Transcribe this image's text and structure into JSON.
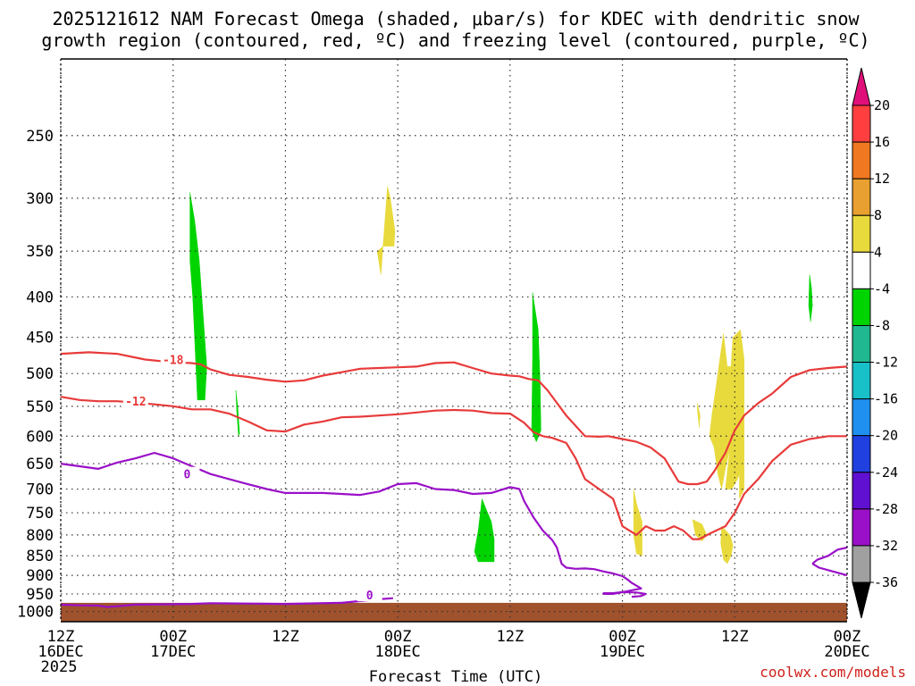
{
  "title": {
    "line1": "2025121612 NAM Forecast Omega (shaded, μbar/s) for KDEC with dendritic snow",
    "line2": "growth region (contoured, red, ºC) and freezing level (contoured, purple, ºC)"
  },
  "credit": "coolwx.com/models",
  "chart_data": {
    "type": "time-height cross section (shaded + contoured)",
    "xlabel": "Forecast Time (UTC)",
    "ylabel": "",
    "x_range_hours": [
      0,
      84
    ],
    "x_ticks": [
      {
        "hour": 0,
        "lines": [
          "12Z",
          "16DEC",
          "2025"
        ]
      },
      {
        "hour": 12,
        "lines": [
          "00Z",
          "17DEC"
        ]
      },
      {
        "hour": 24,
        "lines": [
          "12Z"
        ]
      },
      {
        "hour": 36,
        "lines": [
          "00Z",
          "18DEC"
        ]
      },
      {
        "hour": 48,
        "lines": [
          "12Z"
        ]
      },
      {
        "hour": 60,
        "lines": [
          "00Z",
          "19DEC"
        ]
      },
      {
        "hour": 72,
        "lines": [
          "12Z"
        ]
      },
      {
        "hour": 84,
        "lines": [
          "00Z",
          "20DEC"
        ]
      }
    ],
    "y_scale": "log-pressure, decreasing upward (hPa)",
    "y_range_hpa": [
      1030,
      200
    ],
    "y_ticks": [
      250,
      300,
      350,
      400,
      450,
      500,
      550,
      600,
      650,
      700,
      750,
      800,
      850,
      900,
      950,
      1000
    ],
    "grid": "dotted horizontal and vertical",
    "colorbar": {
      "units": "μbar/s",
      "labels": [
        "20",
        "16",
        "12",
        "8",
        "4",
        "-4",
        "-8",
        "-12",
        "-16",
        "-20",
        "-24",
        "-28",
        "-32",
        "-36"
      ],
      "bins": [
        {
          "color": "#ff3f3f"
        },
        {
          "color": "#f07820"
        },
        {
          "color": "#e8a030"
        },
        {
          "color": "#e8da3c"
        },
        {
          "color": "#ffffff"
        },
        {
          "color": "#00d400"
        },
        {
          "color": "#20b890"
        },
        {
          "color": "#18c0c8"
        },
        {
          "color": "#2090f0"
        },
        {
          "color": "#2040e0"
        },
        {
          "color": "#6010d0"
        },
        {
          "color": "#9a10c8"
        },
        {
          "color": "#a0a0a0"
        }
      ],
      "top_arrow_color": "#e0107a",
      "bottom_arrow_color": "#000000"
    },
    "terrain": {
      "color": "#a0522d",
      "surface_hpa": 975
    },
    "shaded_regions": [
      {
        "color": "#00d400",
        "hours": [
          13.8,
          14.3,
          14.8,
          15.2,
          15.6,
          15.4,
          14.6,
          14.1,
          13.8
        ],
        "hpa": [
          295,
          320,
          360,
          420,
          490,
          540,
          540,
          400,
          360
        ]
      },
      {
        "color": "#00d400",
        "hours": [
          18.7,
          18.9,
          19.1,
          19.0,
          18.8
        ],
        "hpa": [
          525,
          550,
          595,
          600,
          560
        ]
      },
      {
        "color": "#e8da3c",
        "hours": [
          34.9,
          35.2,
          35.7,
          35.6,
          34.5,
          33.8,
          34.2
        ],
        "hpa": [
          290,
          300,
          330,
          345,
          345,
          350,
          375
        ]
      },
      {
        "color": "#00d400",
        "hours": [
          50.4,
          51.0,
          51.2,
          51.3,
          50.8,
          50.3,
          50.4
        ],
        "hpa": [
          395,
          440,
          510,
          590,
          610,
          590,
          480
        ]
      },
      {
        "color": "#00d400",
        "hours": [
          45.0,
          45.4,
          46.0,
          46.3,
          46.3,
          44.6,
          44.2,
          44.6
        ],
        "hpa": [
          720,
          740,
          770,
          810,
          865,
          865,
          840,
          790
        ]
      },
      {
        "color": "#00d400",
        "hours": [
          80.0,
          80.2,
          80.3,
          80.1,
          79.9
        ],
        "hpa": [
          375,
          390,
          410,
          430,
          410
        ]
      },
      {
        "color": "#e8da3c",
        "hours": [
          70.8,
          71.2,
          71.6,
          71.8,
          72.6,
          73.0,
          73.0,
          72.5,
          72.5,
          72.3,
          71.7,
          71.3,
          71.0,
          71.5,
          71.0,
          70.6,
          70.2,
          69.8,
          69.3,
          69.6,
          70.0,
          70.4
        ],
        "hpa": [
          445,
          490,
          490,
          450,
          440,
          480,
          700,
          720,
          670,
          680,
          700,
          700,
          700,
          620,
          660,
          700,
          670,
          620,
          600,
          560,
          520,
          480
        ]
      },
      {
        "color": "#e8da3c",
        "hours": [
          68.0,
          68.3,
          68.2,
          68.0
        ],
        "hpa": [
          545,
          565,
          585,
          555
        ]
      },
      {
        "color": "#e8da3c",
        "hours": [
          61.2,
          61.5,
          62.1,
          62.1,
          61.5,
          61.2,
          61.2
        ],
        "hpa": [
          700,
          730,
          770,
          850,
          845,
          800,
          760
        ]
      },
      {
        "color": "#e8da3c",
        "hours": [
          67.5,
          68.5,
          69.0,
          68.5,
          67.8
        ],
        "hpa": [
          765,
          775,
          800,
          815,
          800
        ]
      },
      {
        "color": "#e8da3c",
        "hours": [
          70.6,
          71.5,
          71.8,
          71.6,
          71.2,
          70.8,
          70.5
        ],
        "hpa": [
          780,
          800,
          825,
          850,
          870,
          860,
          820
        ]
      }
    ],
    "contours": [
      {
        "value": -18,
        "color": "#e83a3a",
        "label": "-18",
        "label_at": [
          12,
          480
        ],
        "hours": [
          0,
          3,
          6,
          9,
          12,
          14,
          15,
          16,
          18,
          20,
          22,
          24,
          26,
          28,
          30,
          32,
          34,
          36,
          38,
          40,
          42,
          44,
          46,
          48,
          49,
          50,
          51,
          52,
          54,
          56,
          57.5,
          58.5,
          60,
          61.5,
          63,
          64.5,
          66,
          67,
          68,
          69,
          69.8,
          71,
          72,
          73,
          74.5,
          76,
          78,
          80,
          82,
          84
        ],
        "hpa": [
          472,
          470,
          472,
          480,
          484,
          485,
          487,
          494,
          502,
          505,
          509,
          512,
          510,
          503,
          498,
          493,
          492,
          491,
          490,
          485,
          484,
          492,
          500,
          503,
          504,
          508,
          510,
          525,
          565,
          600,
          601,
          600,
          605,
          610,
          620,
          640,
          685,
          690,
          690,
          685,
          665,
          630,
          590,
          565,
          545,
          530,
          505,
          495,
          492,
          490
        ]
      },
      {
        "value": -12,
        "color": "#e83a3a",
        "label": "-12",
        "label_at": [
          8,
          542
        ],
        "hours": [
          0,
          2,
          4,
          6,
          8,
          10,
          12,
          14,
          16,
          18,
          20,
          22,
          24,
          26,
          28,
          30,
          32,
          34,
          36,
          38,
          40,
          42,
          44,
          46,
          48,
          49.5,
          50.5,
          51.5,
          52.5,
          54,
          55,
          56,
          57.5,
          59,
          60,
          61.5,
          62.5,
          63.5,
          64.5,
          65.5,
          66.5,
          67.5,
          68.2,
          69.5,
          71,
          72,
          73,
          74.5,
          76,
          78,
          80,
          82,
          84
        ],
        "hpa": [
          535,
          540,
          542,
          542,
          544,
          547,
          550,
          555,
          555,
          562,
          575,
          590,
          592,
          580,
          575,
          568,
          567,
          565,
          563,
          560,
          557,
          556,
          557,
          561,
          562,
          577,
          593,
          600,
          603,
          612,
          640,
          680,
          700,
          720,
          780,
          800,
          780,
          790,
          790,
          780,
          790,
          810,
          810,
          795,
          780,
          750,
          710,
          680,
          645,
          615,
          605,
          600,
          600
        ]
      },
      {
        "value": 0,
        "color": "#9a10c8",
        "label": "0",
        "label_at": [
          13.5,
          670
        ],
        "hours": [
          0,
          2,
          4,
          6,
          8,
          10,
          12,
          14,
          16,
          18,
          20,
          22,
          24,
          26,
          28,
          30,
          32,
          34,
          36,
          38,
          40,
          42,
          44,
          46,
          48,
          49,
          49.5,
          50.5,
          51.5,
          52.5,
          53,
          53.5,
          54,
          55,
          56,
          57,
          58,
          59,
          60,
          60.5,
          61,
          62,
          60,
          59,
          58,
          58,
          59,
          60,
          61.5,
          62.5,
          62,
          61
        ],
        "hpa": [
          650,
          655,
          660,
          648,
          640,
          630,
          640,
          655,
          670,
          680,
          690,
          700,
          708,
          708,
          708,
          710,
          712,
          705,
          690,
          688,
          700,
          702,
          710,
          708,
          696,
          700,
          725,
          760,
          790,
          812,
          830,
          870,
          880,
          883,
          882,
          884,
          890,
          895,
          902,
          910,
          920,
          935,
          945,
          950,
          950,
          948,
          948,
          945,
          946,
          950,
          956,
          958
        ]
      },
      {
        "value": 0,
        "color": "#9a10c8",
        "label": "0",
        "label_at": [
          33,
          953
        ],
        "hours": [
          0,
          2,
          4,
          5,
          8,
          14,
          16,
          20,
          24,
          30,
          32,
          34,
          35.5
        ],
        "hpa": [
          980,
          982,
          983,
          987,
          980,
          978,
          976,
          977,
          978,
          975,
          970,
          965,
          962
        ]
      },
      {
        "value": 0,
        "color": "#9a10c8",
        "label": "",
        "label_at": null,
        "hours": [
          80.3,
          80.8,
          82,
          83,
          84
        ],
        "hpa": [
          870,
          860,
          850,
          835,
          830
        ]
      },
      {
        "value": 0,
        "color": "#9a10c8",
        "label": "",
        "label_at": null,
        "hours": [
          80.3,
          81,
          82.5,
          84
        ],
        "hpa": [
          870,
          880,
          890,
          900
        ]
      }
    ]
  }
}
